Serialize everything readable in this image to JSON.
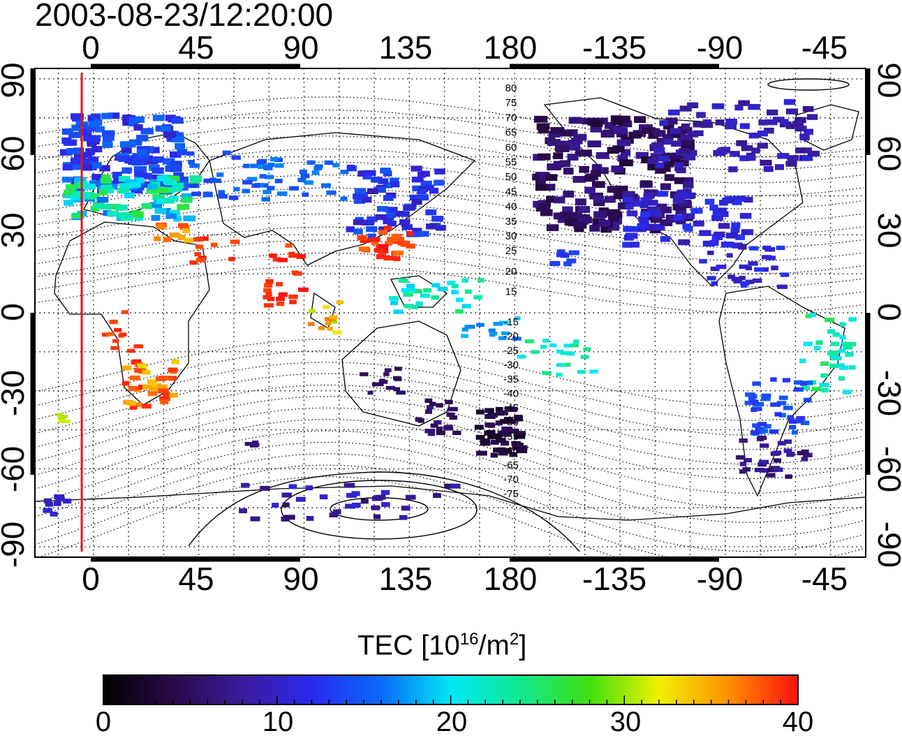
{
  "timestamp": "2003-08-23/12:20:00",
  "map": {
    "type": "global TEC map",
    "projection": "equirectangular",
    "longitude_range_deg": [
      -25,
      330
    ],
    "latitude_range_deg": [
      -94,
      94
    ],
    "top_axis_ticks": [
      "0",
      "45",
      "90",
      "135",
      "180",
      "-135",
      "-90",
      "-45"
    ],
    "bottom_axis_ticks": [
      "0",
      "45",
      "90",
      "135",
      "180",
      "-135",
      "-90",
      "-45"
    ],
    "left_axis_ticks": [
      "90",
      "60",
      "30",
      "0",
      "-30",
      "-60",
      "-90"
    ],
    "right_axis_ticks": [
      "90",
      "60",
      "30",
      "0",
      "-30",
      "-60",
      "-90"
    ],
    "grid": "dotted, every 15 degrees",
    "terminator_line_longitude_deg": -5,
    "terminator_line_color": "#ee1111",
    "contour_labels": {
      "north": [
        "80",
        "75",
        "70",
        "65",
        "60",
        "55",
        "50",
        "45",
        "40",
        "35",
        "30",
        "25",
        "20",
        "15"
      ],
      "south": [
        "-15",
        "-20",
        "-25",
        "-30",
        "-35",
        "-40",
        "-45",
        "-50",
        "-55",
        "-60",
        "-65",
        "-70",
        "-75"
      ]
    }
  },
  "colorbar": {
    "title_main": "TEC  [10",
    "title_exp1": "16",
    "title_mid": "/m",
    "title_exp2": "2",
    "title_end": "]",
    "min": 0,
    "max": 40,
    "ticks": [
      "0",
      "10",
      "20",
      "30",
      "40"
    ],
    "colors": [
      "#000000",
      "#2a0a4a",
      "#3a1a9a",
      "#2a2af0",
      "#0a6af8",
      "#00e8f8",
      "#10e890",
      "#40e010",
      "#f0f000",
      "#ff9000",
      "#ff1010"
    ]
  }
}
